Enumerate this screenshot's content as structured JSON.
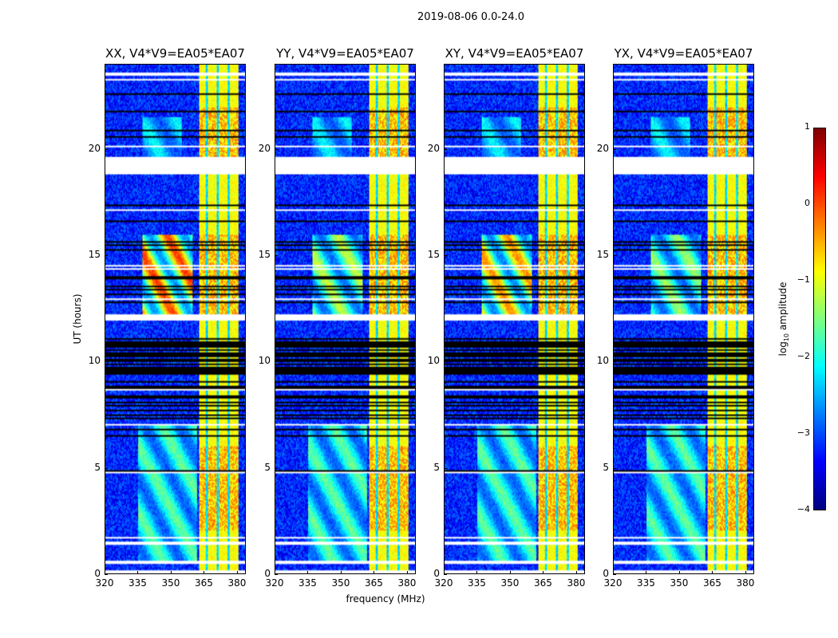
{
  "figure": {
    "suptitle": "2019-08-06 0.0-24.0"
  },
  "chart_data": {
    "type": "heatmap",
    "xlabel": "frequency (MHz)",
    "ylabel": "UT (hours)",
    "xlim": [
      320,
      384
    ],
    "ylim": [
      0,
      24
    ],
    "xticks": [
      320,
      335,
      350,
      365,
      380
    ],
    "yticks": [
      0,
      5,
      10,
      15,
      20
    ],
    "colorbar": {
      "label_prefix": "log",
      "label_sub": "10",
      "label_suffix": " amplitude",
      "range": [
        -4,
        1
      ],
      "ticks": [
        1,
        0,
        -1,
        -2,
        -3,
        -4
      ],
      "tick_labels": [
        "1",
        "0",
        "−1",
        "−2",
        "−3",
        "−4"
      ],
      "colormap": "jet"
    },
    "panels": [
      {
        "title": "XX, V4*V9=EA05*EA07",
        "pol": "XX",
        "blob_strength": 1.6
      },
      {
        "title": "YY, V4*V9=EA05*EA07",
        "pol": "YY",
        "blob_strength": 1.0
      },
      {
        "title": "XY, V4*V9=EA05*EA07",
        "pol": "XY",
        "blob_strength": 1.4
      },
      {
        "title": "YX, V4*V9=EA05*EA07",
        "pol": "YX",
        "blob_strength": 0.9
      }
    ],
    "features": {
      "background_level": -3.2,
      "rfi_band_mhz": [
        363,
        381
      ],
      "rfi_band_level": -0.9,
      "rfi_gap_channels_mhz": [
        366.5,
        371.5,
        376.5
      ],
      "blank_intervals_hr": [
        [
          23.45,
          23.65
        ],
        [
          18.8,
          19.6
        ],
        [
          11.95,
          12.2
        ],
        [
          1.45,
          1.5
        ],
        [
          0.45,
          0.5
        ]
      ],
      "flagged_interval_hr": [
        7.0,
        11.1
      ],
      "emission_regions": [
        {
          "freq_mhz": [
            335,
            362
          ],
          "time_hr": [
            0.5,
            7.0
          ],
          "level": -1.9
        },
        {
          "freq_mhz": [
            337,
            360
          ],
          "time_hr": [
            12.2,
            16.0
          ],
          "level": -1.5
        },
        {
          "freq_mhz": [
            337,
            355
          ],
          "time_hr": [
            19.6,
            21.5
          ],
          "level": -2.3
        }
      ]
    }
  }
}
